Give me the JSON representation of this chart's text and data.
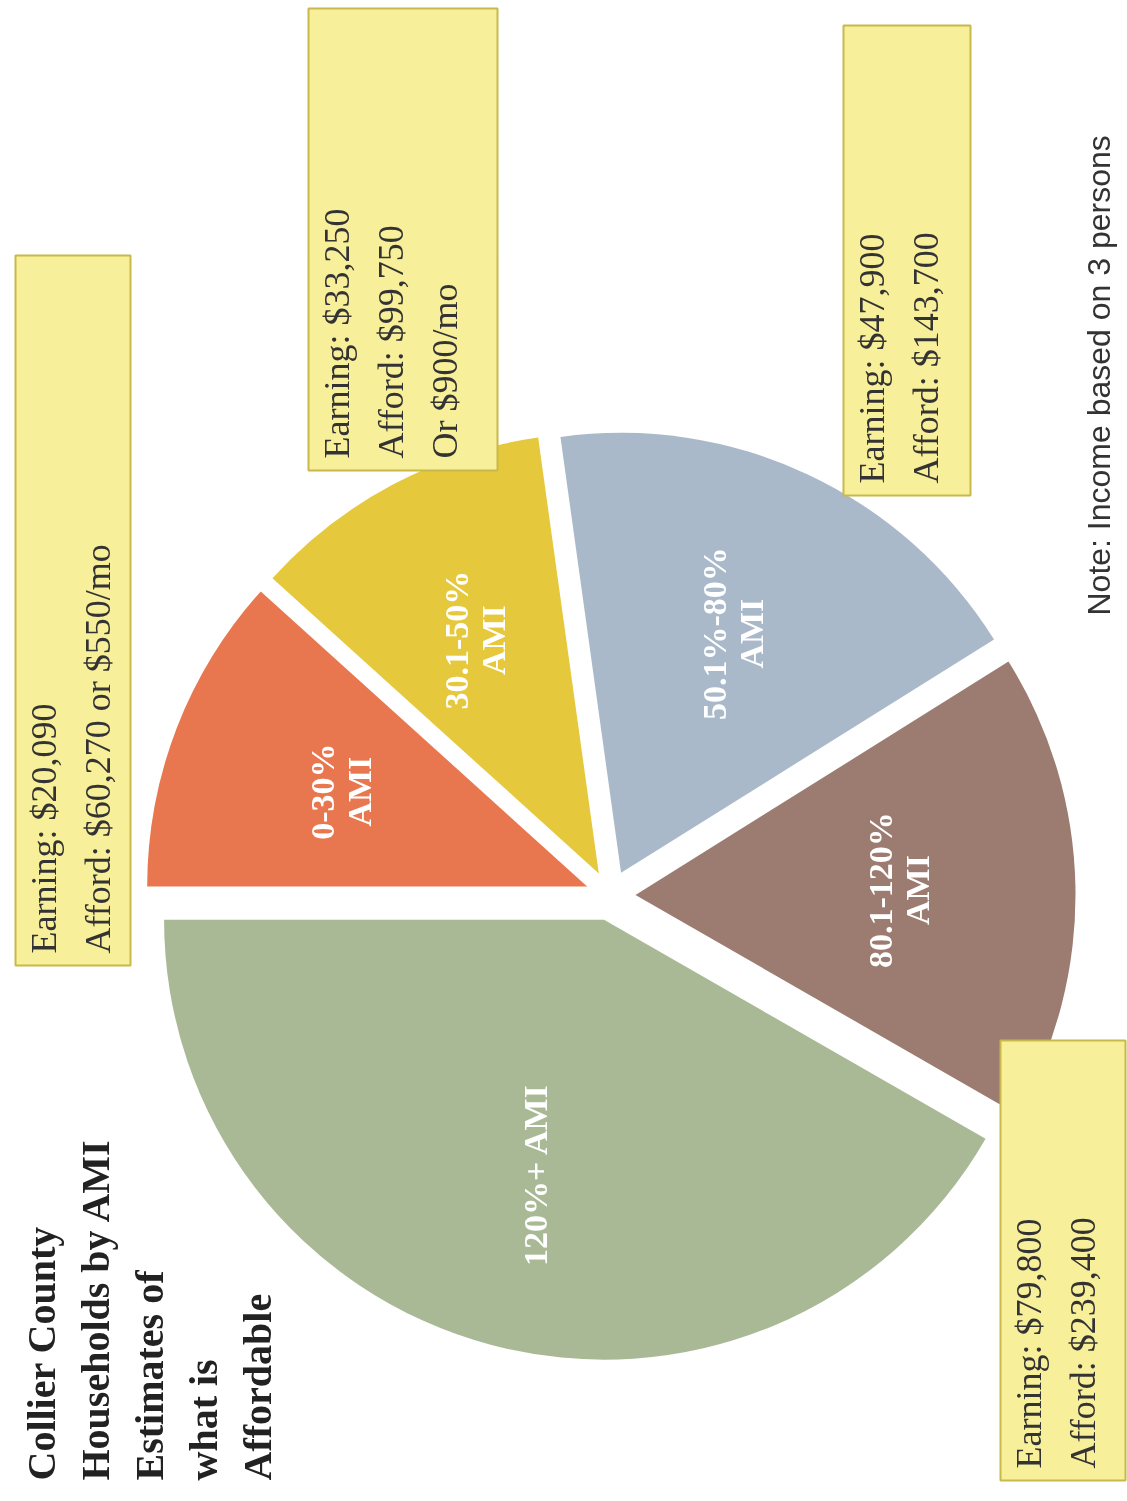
{
  "chart_data": {
    "type": "pie",
    "title": "Collier County\nHouseholds by AMI\nEstimates of\nwhat is\nAffordable",
    "categories": [
      "120%+ AMI",
      "80.1-120%\nAMI",
      "50.1%-80%\nAMI",
      "30.1-50%\nAMI",
      "0-30%\nAMI"
    ],
    "values": [
      41.7,
      17.2,
      18.3,
      11.1,
      11.7
    ],
    "colors": [
      "#a9b995",
      "#9c7b70",
      "#a9b9c9",
      "#e6c83c",
      "#e8774f"
    ],
    "annotations": [
      "Earning: $20,090\nAfford:  $60,270 or $550/mo",
      "Earning: $33,250\nAfford:  $99,750\nOr $900/mo",
      "Earning:  $47,900\nAfford:  $143,700",
      "Earning:  $79,800\nAfford:  $239,400",
      "Note: Income based on 3 persons"
    ]
  }
}
